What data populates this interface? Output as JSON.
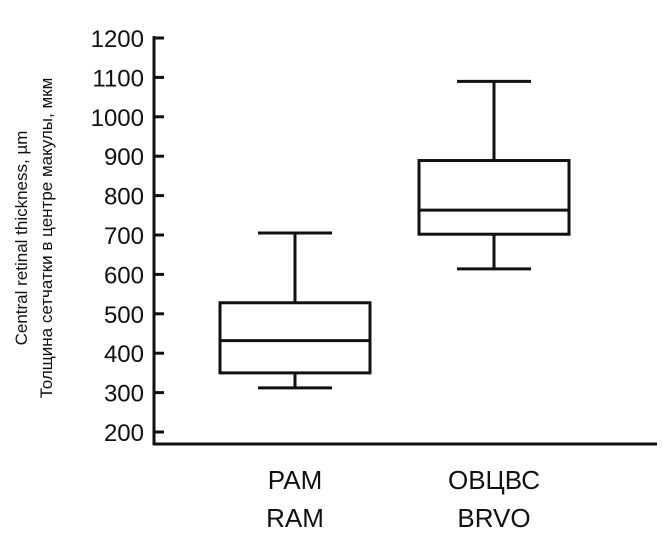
{
  "chart_data": {
    "type": "box",
    "title": "",
    "ylabel": [
      "Central retinal thickness, µm",
      "Толщина сетчатки в центре макулы, мкм"
    ],
    "ylim": [
      200,
      1200
    ],
    "yticks": [
      200,
      300,
      400,
      500,
      600,
      700,
      800,
      900,
      1000,
      1100,
      1200
    ],
    "grid": false,
    "boxes": [
      {
        "label_ru": "РАМ",
        "label_en": "RAM",
        "min": 312,
        "q1": 350,
        "median": 432,
        "q3": 528,
        "max": 705
      },
      {
        "label_ru": "ОВЦВС",
        "label_en": "BRVO",
        "min": 614,
        "q1": 702,
        "median": 763,
        "q3": 889,
        "max": 1090
      }
    ]
  }
}
